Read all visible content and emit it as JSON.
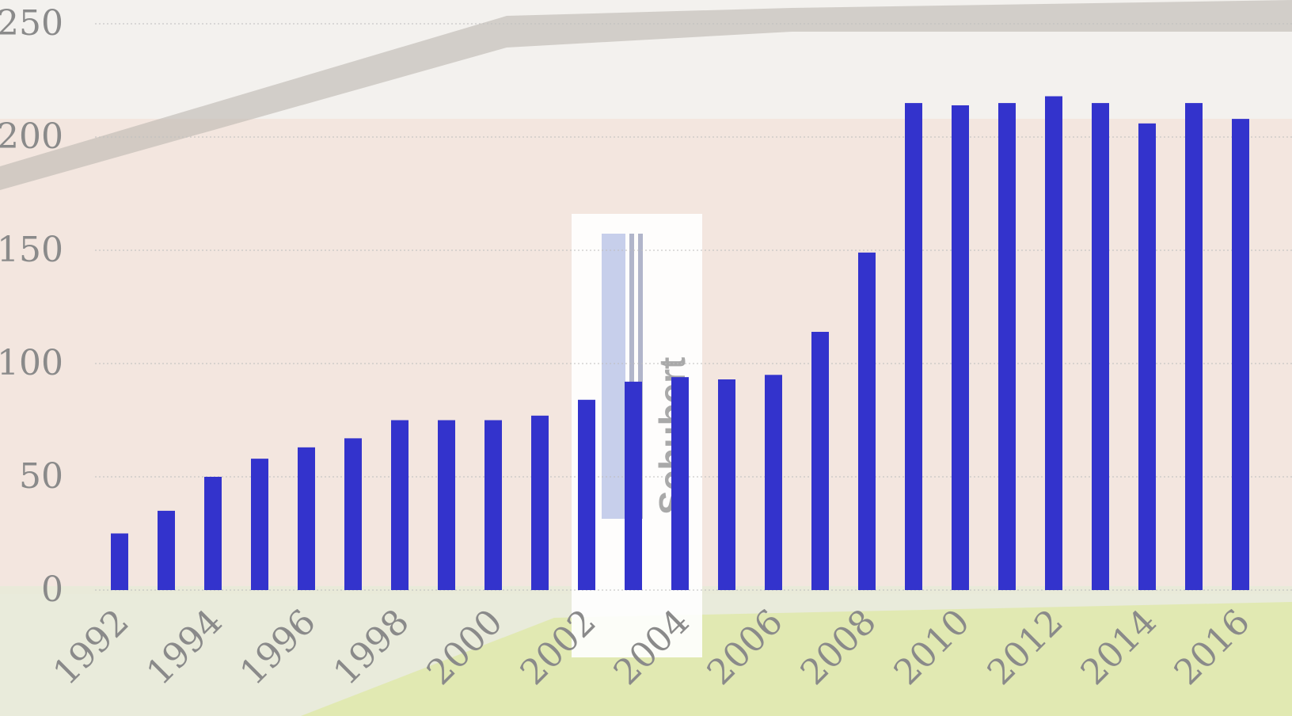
{
  "chart_data": {
    "type": "bar",
    "title": "",
    "xlabel": "",
    "ylabel": "",
    "ylim": [
      0,
      250
    ],
    "yticks": [
      0,
      50,
      100,
      150,
      200,
      250
    ],
    "grid": true,
    "legend": "none",
    "bar_color": "#3333cc",
    "background": "faded photograph of a brick building with a 'Schubert' sign",
    "background_sign_text": "Schubert",
    "categories": [
      "1992",
      "1993",
      "1994",
      "1995",
      "1996",
      "1997",
      "1998",
      "1999",
      "2000",
      "2001",
      "2002",
      "2003",
      "2004",
      "2005",
      "2006",
      "2007",
      "2008",
      "2009",
      "2010",
      "2011",
      "2012",
      "2013",
      "2014",
      "2015",
      "2016"
    ],
    "x_tick_labels": [
      "1992",
      "1994",
      "1996",
      "1998",
      "2000",
      "2002",
      "2004",
      "2006",
      "2008",
      "2010",
      "2012",
      "2014",
      "2016"
    ],
    "values": [
      25,
      35,
      50,
      58,
      63,
      67,
      75,
      75,
      75,
      77,
      84,
      92,
      94,
      93,
      95,
      114,
      149,
      215,
      214,
      215,
      218,
      215,
      206,
      215,
      208
    ]
  }
}
